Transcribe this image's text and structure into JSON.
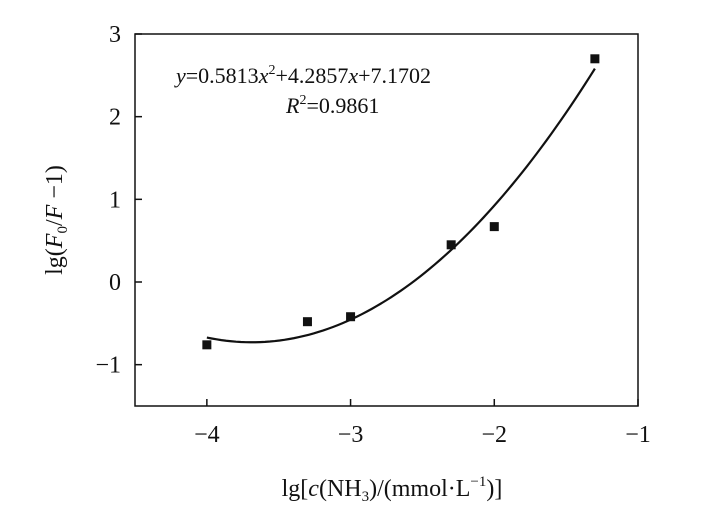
{
  "chart_data": {
    "type": "scatter",
    "xlabel_parts": {
      "pre": "lg[",
      "italic": "c",
      "mid": "(NH",
      "sub": "3",
      "post": ")/(mmol·L",
      "sup": "−1",
      "end": ")]"
    },
    "ylabel_parts": {
      "pre": "lg(",
      "italic1": "F",
      "sub": "0",
      "slash": "/",
      "italic2": "F",
      "post": " −1)"
    },
    "xlim": [
      -4.5,
      -1
    ],
    "ylim": [
      -1.5,
      3
    ],
    "xticks": [
      -4,
      -3,
      -2,
      -1
    ],
    "yticks": [
      -1,
      0,
      1,
      2,
      3
    ],
    "xtick_labels": [
      "−4",
      "−3",
      "−2",
      "−1"
    ],
    "ytick_labels": [
      "−1",
      "0",
      "1",
      "2",
      "3"
    ],
    "series": [
      {
        "marker": "square",
        "color": "#111111",
        "points": [
          {
            "x": -4.0,
            "y": -0.76
          },
          {
            "x": -3.3,
            "y": -0.48
          },
          {
            "x": -3.0,
            "y": -0.42
          },
          {
            "x": -2.3,
            "y": 0.45
          },
          {
            "x": -2.0,
            "y": 0.67
          },
          {
            "x": -1.3,
            "y": 2.7
          }
        ]
      }
    ],
    "fit": {
      "kind": "quadratic",
      "a": 0.5813,
      "b": 4.2857,
      "c": 7.1702,
      "x_range": [
        -4.0,
        -1.3
      ],
      "color": "#111111"
    },
    "annotation": {
      "equation": {
        "y": "y",
        "eq1": "=0.5813",
        "x1": "x",
        "sup": "2",
        "eq2": "+4.2857",
        "x2": "x",
        "eq3": "+7.1702"
      },
      "r2": {
        "r": "R",
        "sup": "2",
        "rest": "=0.9861"
      }
    },
    "grid": false,
    "legend": "none"
  }
}
